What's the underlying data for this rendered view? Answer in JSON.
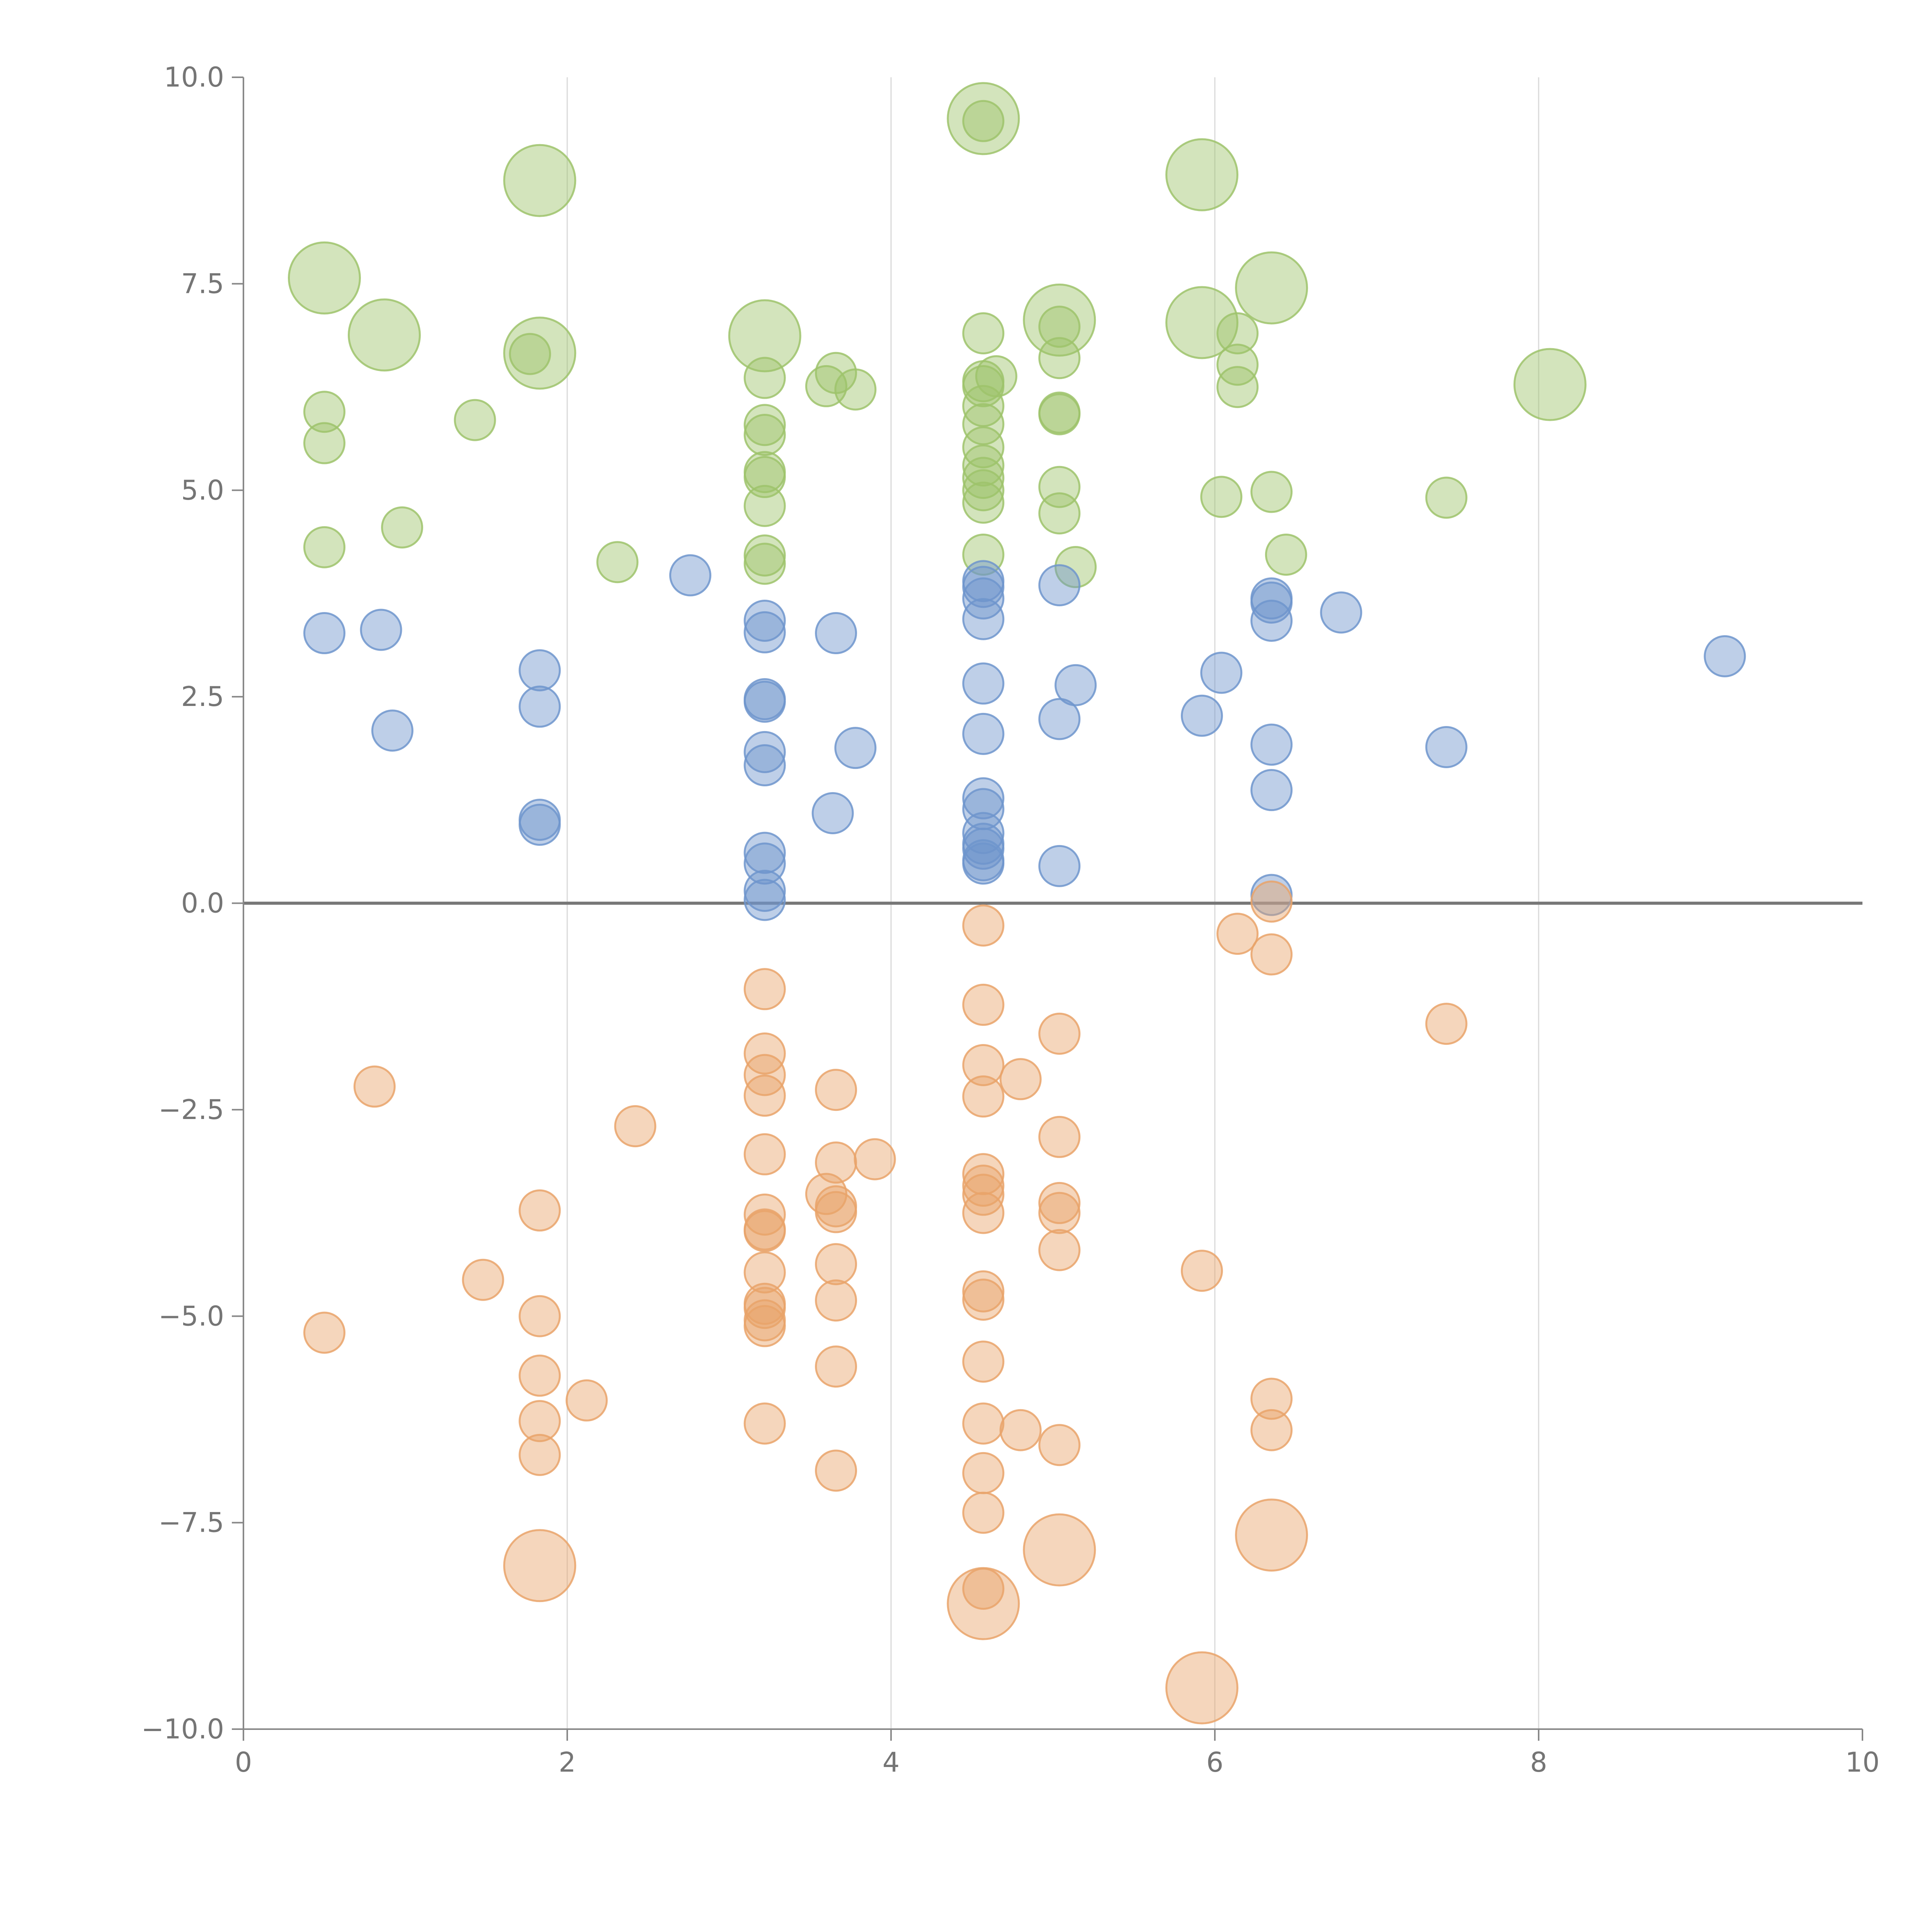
{
  "chart_data": {
    "type": "scatter",
    "title": "",
    "xlabel": "",
    "ylabel": "",
    "xlim": [
      0,
      10
    ],
    "ylim": [
      -10,
      10
    ],
    "xticks": [
      0,
      2,
      4,
      6,
      8,
      10
    ],
    "xtick_labels": [
      "0",
      "2",
      "4",
      "6",
      "8",
      "10"
    ],
    "yticks": [
      10,
      7.5,
      5,
      2.5,
      0,
      -2.5,
      -5,
      -7.5,
      -10
    ],
    "ytick_labels": [
      "10.0",
      "7.5",
      "5.0",
      "2.5",
      "0.0",
      "−2.5",
      "−5.0",
      "−7.5",
      "−10.0"
    ],
    "vertical_grid": true,
    "zero_line": true,
    "series": [
      {
        "name": "green",
        "color": "#9dc36b",
        "points": [
          [
            0.5,
            5.95,
            1
          ],
          [
            0.5,
            5.57,
            1
          ],
          [
            0.5,
            4.31,
            1
          ],
          [
            0.98,
            4.55,
            1
          ],
          [
            1.43,
            5.85,
            1
          ],
          [
            1.77,
            6.65,
            1
          ],
          [
            2.31,
            4.13,
            1
          ],
          [
            3.22,
            6.36,
            1
          ],
          [
            3.22,
            5.79,
            1
          ],
          [
            3.22,
            5.67,
            1
          ],
          [
            3.22,
            5.22,
            1
          ],
          [
            3.22,
            5.16,
            1
          ],
          [
            3.22,
            4.81,
            1
          ],
          [
            3.22,
            4.21,
            1
          ],
          [
            3.22,
            4.11,
            1
          ],
          [
            3.6,
            6.26,
            1
          ],
          [
            3.66,
            6.42,
            1
          ],
          [
            3.78,
            6.22,
            1
          ],
          [
            4.57,
            9.47,
            1
          ],
          [
            4.57,
            6.9,
            1
          ],
          [
            4.57,
            6.32,
            1
          ],
          [
            4.57,
            6.26,
            1
          ],
          [
            4.57,
            6.02,
            1
          ],
          [
            4.57,
            5.8,
            1
          ],
          [
            4.57,
            5.52,
            1
          ],
          [
            4.57,
            5.3,
            1
          ],
          [
            4.57,
            5.15,
            1
          ],
          [
            4.57,
            5.0,
            1
          ],
          [
            4.57,
            4.85,
            1
          ],
          [
            4.57,
            4.22,
            1
          ],
          [
            4.65,
            6.38,
            1
          ],
          [
            5.04,
            6.98,
            1
          ],
          [
            5.04,
            6.6,
            1
          ],
          [
            5.04,
            5.94,
            1
          ],
          [
            5.04,
            5.92,
            1
          ],
          [
            5.04,
            5.04,
            1
          ],
          [
            5.04,
            4.72,
            1
          ],
          [
            5.14,
            4.07,
            1
          ],
          [
            6.04,
            4.92,
            1
          ],
          [
            6.14,
            6.9,
            1
          ],
          [
            6.14,
            6.52,
            1
          ],
          [
            6.14,
            6.25,
            1
          ],
          [
            6.35,
            4.98,
            1
          ],
          [
            6.44,
            4.22,
            1
          ],
          [
            7.43,
            4.91,
            1
          ],
          [
            0.5,
            7.57,
            2
          ],
          [
            0.87,
            6.88,
            2
          ],
          [
            1.83,
            8.75,
            2
          ],
          [
            1.83,
            6.66,
            2
          ],
          [
            3.22,
            6.87,
            2
          ],
          [
            4.57,
            9.5,
            2
          ],
          [
            5.04,
            7.06,
            2
          ],
          [
            5.92,
            8.82,
            2
          ],
          [
            5.92,
            7.03,
            2
          ],
          [
            6.35,
            7.45,
            2
          ],
          [
            8.07,
            6.28,
            2
          ]
        ]
      },
      {
        "name": "blue",
        "color": "#6e95cc",
        "points": [
          [
            0.5,
            3.27,
            1
          ],
          [
            0.85,
            3.31,
            1
          ],
          [
            0.92,
            2.09,
            1
          ],
          [
            1.83,
            2.82,
            1
          ],
          [
            1.83,
            2.38,
            1
          ],
          [
            1.83,
            1.01,
            1
          ],
          [
            1.83,
            0.95,
            1
          ],
          [
            2.76,
            3.97,
            1
          ],
          [
            3.22,
            3.42,
            1
          ],
          [
            3.22,
            3.28,
            1
          ],
          [
            3.22,
            2.47,
            1
          ],
          [
            3.22,
            2.44,
            1
          ],
          [
            3.22,
            1.83,
            1
          ],
          [
            3.22,
            1.67,
            1
          ],
          [
            3.22,
            0.61,
            1
          ],
          [
            3.22,
            0.48,
            1
          ],
          [
            3.22,
            0.15,
            1
          ],
          [
            3.22,
            0.04,
            1
          ],
          [
            3.64,
            1.09,
            1
          ],
          [
            3.66,
            3.27,
            1
          ],
          [
            3.78,
            1.88,
            1
          ],
          [
            4.57,
            3.9,
            1
          ],
          [
            4.57,
            3.83,
            1
          ],
          [
            4.57,
            3.69,
            1
          ],
          [
            4.57,
            3.44,
            1
          ],
          [
            4.57,
            2.66,
            1
          ],
          [
            4.57,
            2.05,
            1
          ],
          [
            4.57,
            1.27,
            1
          ],
          [
            4.57,
            1.14,
            1
          ],
          [
            4.57,
            0.85,
            1
          ],
          [
            4.57,
            0.72,
            1
          ],
          [
            4.57,
            0.66,
            1
          ],
          [
            4.57,
            0.52,
            1
          ],
          [
            4.57,
            0.48,
            1
          ],
          [
            5.04,
            3.85,
            1
          ],
          [
            5.04,
            2.23,
            1
          ],
          [
            5.04,
            0.45,
            1
          ],
          [
            5.14,
            2.64,
            1
          ],
          [
            5.92,
            2.27,
            1
          ],
          [
            6.04,
            2.79,
            1
          ],
          [
            6.35,
            3.69,
            1
          ],
          [
            6.35,
            3.64,
            1
          ],
          [
            6.35,
            3.42,
            1
          ],
          [
            6.35,
            1.92,
            1
          ],
          [
            6.35,
            1.37,
            1
          ],
          [
            6.35,
            0.1,
            1
          ],
          [
            6.78,
            3.52,
            1
          ],
          [
            7.43,
            1.89,
            1
          ],
          [
            9.15,
            2.99,
            1
          ]
        ]
      },
      {
        "name": "orange",
        "color": "#e9a36a",
        "points": [
          [
            0.5,
            -5.2,
            1
          ],
          [
            0.81,
            -2.22,
            1
          ],
          [
            1.48,
            -4.56,
            1
          ],
          [
            1.83,
            -3.72,
            1
          ],
          [
            1.83,
            -5.0,
            1
          ],
          [
            1.83,
            -5.72,
            1
          ],
          [
            1.83,
            -6.27,
            1
          ],
          [
            1.83,
            -6.68,
            1
          ],
          [
            2.12,
            -6.02,
            1
          ],
          [
            2.42,
            -2.7,
            1
          ],
          [
            3.22,
            -1.04,
            1
          ],
          [
            3.22,
            -1.82,
            1
          ],
          [
            3.22,
            -2.08,
            1
          ],
          [
            3.22,
            -2.33,
            1
          ],
          [
            3.22,
            -3.04,
            1
          ],
          [
            3.22,
            -3.77,
            1
          ],
          [
            3.22,
            -3.95,
            1
          ],
          [
            3.22,
            -3.97,
            1
          ],
          [
            3.22,
            -4.47,
            1
          ],
          [
            3.22,
            -4.85,
            1
          ],
          [
            3.22,
            -4.9,
            1
          ],
          [
            3.22,
            -5.05,
            1
          ],
          [
            3.22,
            -5.12,
            1
          ],
          [
            3.22,
            -6.3,
            1
          ],
          [
            3.6,
            -3.52,
            1
          ],
          [
            3.66,
            -3.67,
            1
          ],
          [
            3.66,
            -2.26,
            1
          ],
          [
            3.66,
            -3.14,
            1
          ],
          [
            3.66,
            -3.74,
            1
          ],
          [
            3.66,
            -4.37,
            1
          ],
          [
            3.66,
            -4.81,
            1
          ],
          [
            3.66,
            -5.61,
            1
          ],
          [
            3.66,
            -6.87,
            1
          ],
          [
            3.9,
            -3.1,
            1
          ],
          [
            4.57,
            -0.27,
            1
          ],
          [
            4.57,
            -1.23,
            1
          ],
          [
            4.57,
            -1.96,
            1
          ],
          [
            4.57,
            -2.34,
            1
          ],
          [
            4.57,
            -3.28,
            1
          ],
          [
            4.57,
            -3.42,
            1
          ],
          [
            4.57,
            -3.53,
            1
          ],
          [
            4.57,
            -3.75,
            1
          ],
          [
            4.57,
            -4.7,
            1
          ],
          [
            4.57,
            -4.8,
            1
          ],
          [
            4.57,
            -5.55,
            1
          ],
          [
            4.57,
            -6.3,
            1
          ],
          [
            4.57,
            -6.9,
            1
          ],
          [
            4.57,
            -7.38,
            1
          ],
          [
            4.57,
            -8.3,
            1
          ],
          [
            4.8,
            -2.13,
            1
          ],
          [
            4.8,
            -6.38,
            1
          ],
          [
            5.04,
            -1.58,
            1
          ],
          [
            5.04,
            -2.83,
            1
          ],
          [
            5.04,
            -3.63,
            1
          ],
          [
            5.04,
            -3.75,
            1
          ],
          [
            5.04,
            -4.2,
            1
          ],
          [
            5.04,
            -6.56,
            1
          ],
          [
            5.92,
            -4.45,
            1
          ],
          [
            6.14,
            -0.37,
            1
          ],
          [
            6.35,
            0.02,
            1
          ],
          [
            6.35,
            -0.62,
            1
          ],
          [
            6.35,
            -6.0,
            1
          ],
          [
            6.35,
            -6.38,
            1
          ],
          [
            7.43,
            -1.46,
            1
          ],
          [
            1.83,
            -8.02,
            2
          ],
          [
            4.57,
            -8.48,
            2
          ],
          [
            5.04,
            -7.83,
            2
          ],
          [
            5.92,
            -9.5,
            2
          ],
          [
            6.35,
            -7.65,
            2
          ]
        ]
      }
    ]
  }
}
